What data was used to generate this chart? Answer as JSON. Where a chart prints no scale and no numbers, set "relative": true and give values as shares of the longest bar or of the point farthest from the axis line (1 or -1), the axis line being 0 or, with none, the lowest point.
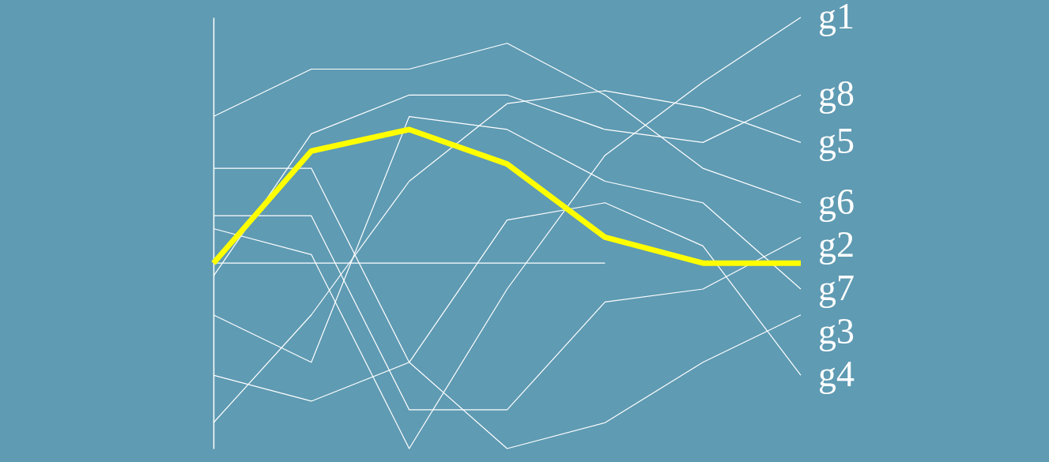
{
  "chart_data": {
    "type": "line",
    "relative": true,
    "categories": [
      null,
      null,
      null,
      null,
      null,
      null,
      null
    ],
    "series": [
      {
        "name": "g6",
        "color": "#ffffff",
        "values": [
          0.77,
          0.88,
          0.88,
          0.94,
          0.82,
          0.65,
          0.57
        ]
      },
      {
        "name": "g3",
        "color": "#ffffff",
        "values": [
          0.65,
          0.65,
          0.2,
          0,
          0.06,
          0.2,
          0.31
        ]
      },
      {
        "name": "g2",
        "color": "#ffffff",
        "values": [
          0.54,
          0.54,
          0.09,
          0.09,
          0.34,
          0.37,
          0.49
        ]
      },
      {
        "name": "g1",
        "color": "#ffffff",
        "values": [
          0.51,
          0.45,
          0,
          0.37,
          0.68,
          0.85,
          1
        ]
      },
      {
        "name": "g8",
        "color": "#ffffff",
        "values": [
          0.4,
          0.73,
          0.82,
          0.82,
          0.74,
          0.71,
          0.82
        ]
      },
      {
        "name": "g7",
        "color": "#ffffff",
        "values": [
          0.31,
          0.2,
          0.77,
          0.74,
          0.62,
          0.57,
          0.37
        ]
      },
      {
        "name": "g4",
        "color": "#ffffff",
        "values": [
          0.17,
          0.11,
          0.2,
          0.53,
          0.57,
          0.47,
          0.17
        ]
      },
      {
        "name": "g5",
        "color": "#ffffff",
        "values": [
          0.06,
          0.31,
          0.62,
          0.8,
          0.83,
          0.79,
          0.71
        ]
      },
      {
        "color": "#ffffff",
        "values": [
          0.43,
          0.43,
          0.43,
          0.43,
          0.43,
          null,
          null
        ]
      },
      {
        "color": "#ffff00",
        "values": [
          0.43,
          0.69,
          0.74,
          0.66,
          0.49,
          0.43,
          0.43
        ]
      }
    ],
    "grid": false,
    "legend": false,
    "marker": "none",
    "line_style": "solid"
  }
}
